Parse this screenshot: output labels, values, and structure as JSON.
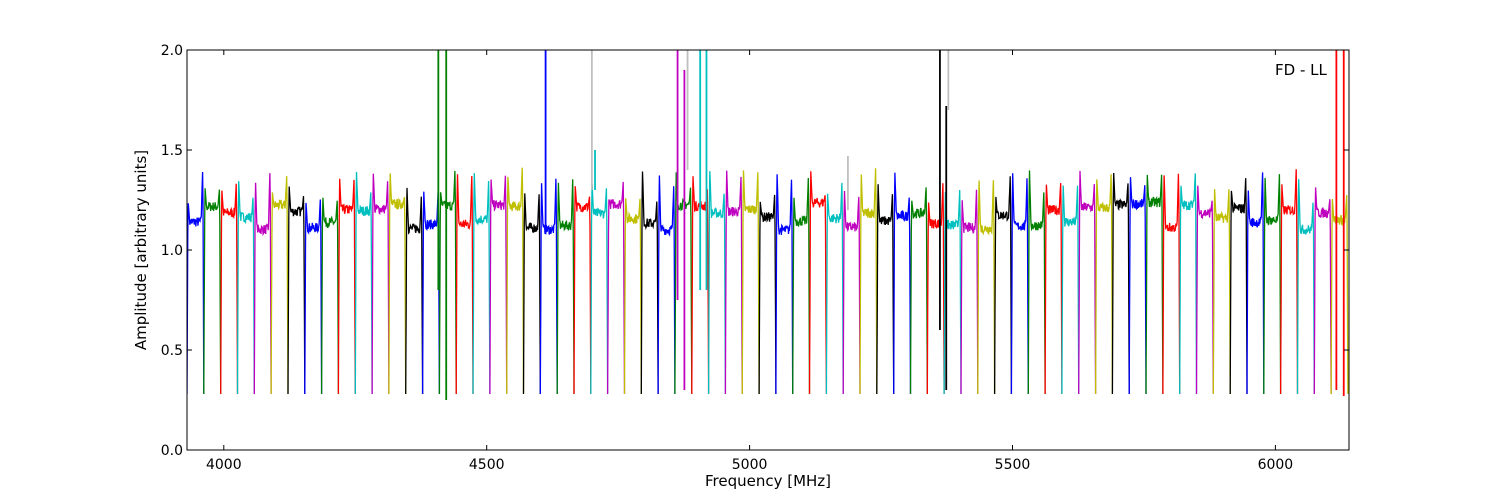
{
  "chart_data": {
    "type": "line",
    "title": "",
    "xlabel": "Frequency [MHz]",
    "ylabel": "Amplitude [arbitrary units]",
    "annotation": "FD - LL",
    "xlim": [
      3930,
      6140
    ],
    "ylim": [
      0.0,
      2.0
    ],
    "grid": false,
    "legend": "none",
    "x_ticks": [
      {
        "value": 4000,
        "label": "4000"
      },
      {
        "value": 4500,
        "label": "4500"
      },
      {
        "value": 5000,
        "label": "5000"
      },
      {
        "value": 5500,
        "label": "5500"
      },
      {
        "value": 6000,
        "label": "6000"
      }
    ],
    "y_ticks": [
      {
        "value": 0.0,
        "label": "0.0"
      },
      {
        "value": 0.5,
        "label": "0.5"
      },
      {
        "value": 1.0,
        "label": "1.0"
      },
      {
        "value": 1.5,
        "label": "1.5"
      },
      {
        "value": 2.0,
        "label": "2.0"
      }
    ],
    "color_cycle": [
      "#0000ff",
      "#008000",
      "#ff0000",
      "#00bfbf",
      "#bf00bf",
      "#bfbf00",
      "#000000"
    ],
    "background_color": "#bfbfbf",
    "channel_width_mhz": 32,
    "channel_edges_mhz": [
      3930,
      3962,
      3994,
      4026,
      4058,
      4090,
      4122,
      4154,
      4186,
      4218,
      4250,
      4282,
      4314,
      4346,
      4378,
      4410,
      4442,
      4474,
      4506,
      4538,
      4570,
      4602,
      4634,
      4666,
      4698,
      4730,
      4762,
      4794,
      4826,
      4858,
      4890,
      4922,
      4954,
      4986,
      5018,
      5050,
      5082,
      5114,
      5146,
      5178,
      5210,
      5242,
      5274,
      5306,
      5338,
      5370,
      5402,
      5434,
      5466,
      5498,
      5530,
      5562,
      5594,
      5626,
      5658,
      5690,
      5722,
      5754,
      5786,
      5818,
      5850,
      5882,
      5914,
      5946,
      5978,
      6010,
      6042,
      6074,
      6106
    ],
    "bandpass": {
      "edge_level": 0.28,
      "peak_level": 1.35,
      "plateau_level": 1.17
    },
    "spikes": [
      {
        "x": 4408,
        "ymin": 0.8,
        "ymax": 2.0,
        "color": "#008000"
      },
      {
        "x": 4423,
        "ymin": 0.25,
        "ymax": 2.0,
        "color": "#008000"
      },
      {
        "x": 4612,
        "ymin": 1.1,
        "ymax": 2.0,
        "color": "#0000ff"
      },
      {
        "x": 4700,
        "ymin": 1.3,
        "ymax": 2.0,
        "color": "#bfbfbf"
      },
      {
        "x": 4706,
        "ymin": 1.3,
        "ymax": 1.5,
        "color": "#00bfbf"
      },
      {
        "x": 4863,
        "ymin": 0.75,
        "ymax": 2.0,
        "color": "#bf00bf"
      },
      {
        "x": 4876,
        "ymin": 0.3,
        "ymax": 1.9,
        "color": "#bf00bf"
      },
      {
        "x": 4882,
        "ymin": 1.4,
        "ymax": 2.0,
        "color": "#bfbfbf"
      },
      {
        "x": 4906,
        "ymin": 0.8,
        "ymax": 2.0,
        "color": "#00bfbf"
      },
      {
        "x": 4918,
        "ymin": 0.8,
        "ymax": 2.0,
        "color": "#00bfbf"
      },
      {
        "x": 5362,
        "ymin": 0.6,
        "ymax": 2.0,
        "color": "#000000"
      },
      {
        "x": 5374,
        "ymin": 0.3,
        "ymax": 1.72,
        "color": "#000000"
      },
      {
        "x": 5378,
        "ymin": 1.7,
        "ymax": 2.0,
        "color": "#bfbfbf"
      },
      {
        "x": 5187,
        "ymin": 1.2,
        "ymax": 1.47,
        "color": "#bfbfbf"
      },
      {
        "x": 6116,
        "ymin": 0.3,
        "ymax": 2.0,
        "color": "#ff0000"
      },
      {
        "x": 6130,
        "ymin": 0.27,
        "ymax": 2.0,
        "color": "#ff0000"
      }
    ]
  }
}
